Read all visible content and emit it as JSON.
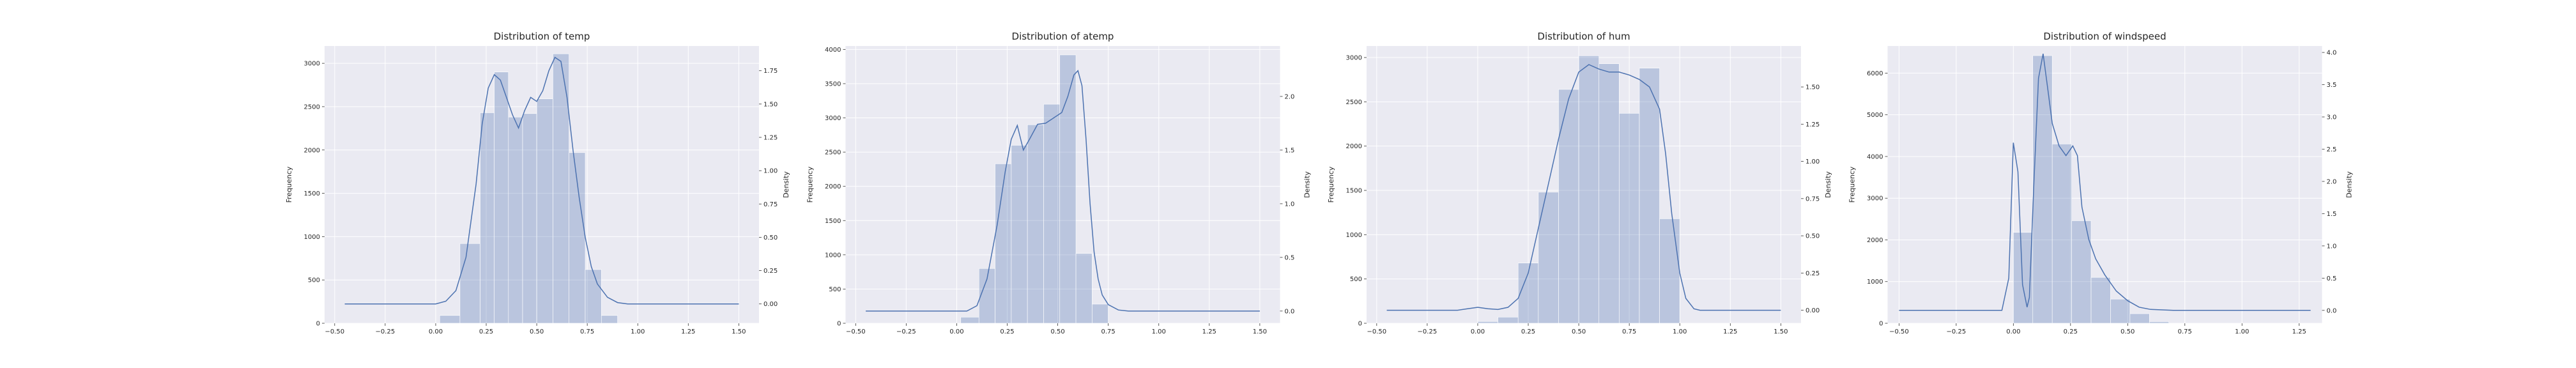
{
  "style": {
    "bg": "#eaeaf2",
    "grid": "#ffffff",
    "bar": "#4c72b0",
    "bar_alpha": 0.3,
    "kde": "#4c72b0"
  },
  "chart_data": [
    {
      "type": "histogram",
      "title": "Distribution of temp",
      "ylabel": "Frequency",
      "y2label": "Density",
      "xlim": [
        -0.55,
        1.6
      ],
      "ylim": [
        0,
        3200
      ],
      "y2lim": [
        -0.1452,
        1.9355
      ],
      "xticks": [
        -0.5,
        -0.25,
        0.0,
        0.25,
        0.5,
        0.75,
        1.0,
        1.25,
        1.5
      ],
      "xtick_labels": [
        "−0.50",
        "−0.25",
        "0.00",
        "0.25",
        "0.50",
        "0.75",
        "1.00",
        "1.25",
        "1.50"
      ],
      "yticks": [
        0,
        500,
        1000,
        1500,
        2000,
        2500,
        3000
      ],
      "ytick_labels": [
        "0",
        "500",
        "1000",
        "1500",
        "2000",
        "2500",
        "3000"
      ],
      "y2ticks": [
        0.0,
        0.25,
        0.5,
        0.75,
        1.0,
        1.25,
        1.5,
        1.75
      ],
      "y2tick_labels": [
        "0.00",
        "0.25",
        "0.50",
        "0.75",
        "1.00",
        "1.25",
        "1.50",
        "1.75"
      ],
      "bins": [
        {
          "x0": 0.02,
          "x1": 0.12,
          "count": 90
        },
        {
          "x0": 0.12,
          "x1": 0.22,
          "count": 920
        },
        {
          "x0": 0.22,
          "x1": 0.29,
          "count": 2430
        },
        {
          "x0": 0.29,
          "x1": 0.36,
          "count": 2900
        },
        {
          "x0": 0.36,
          "x1": 0.43,
          "count": 2380
        },
        {
          "x0": 0.43,
          "x1": 0.5,
          "count": 2420
        },
        {
          "x0": 0.5,
          "x1": 0.58,
          "count": 2590
        },
        {
          "x0": 0.58,
          "x1": 0.66,
          "count": 3110
        },
        {
          "x0": 0.66,
          "x1": 0.74,
          "count": 1970
        },
        {
          "x0": 0.74,
          "x1": 0.82,
          "count": 620
        },
        {
          "x0": 0.82,
          "x1": 0.9,
          "count": 90
        }
      ],
      "kde": [
        [
          -0.45,
          0.0
        ],
        [
          0.0,
          0.0
        ],
        [
          0.05,
          0.02
        ],
        [
          0.1,
          0.1
        ],
        [
          0.15,
          0.35
        ],
        [
          0.2,
          0.9
        ],
        [
          0.23,
          1.35
        ],
        [
          0.26,
          1.62
        ],
        [
          0.29,
          1.72
        ],
        [
          0.32,
          1.68
        ],
        [
          0.35,
          1.55
        ],
        [
          0.38,
          1.42
        ],
        [
          0.41,
          1.32
        ],
        [
          0.44,
          1.45
        ],
        [
          0.47,
          1.55
        ],
        [
          0.5,
          1.52
        ],
        [
          0.53,
          1.6
        ],
        [
          0.56,
          1.75
        ],
        [
          0.59,
          1.85
        ],
        [
          0.62,
          1.82
        ],
        [
          0.65,
          1.55
        ],
        [
          0.68,
          1.15
        ],
        [
          0.71,
          0.8
        ],
        [
          0.74,
          0.5
        ],
        [
          0.77,
          0.28
        ],
        [
          0.8,
          0.15
        ],
        [
          0.85,
          0.05
        ],
        [
          0.9,
          0.01
        ],
        [
          0.95,
          0.0
        ],
        [
          1.5,
          0.0
        ]
      ]
    },
    {
      "type": "histogram",
      "title": "Distribution of atemp",
      "ylabel": "Frequency",
      "y2label": "Density",
      "xlim": [
        -0.55,
        1.6
      ],
      "ylim": [
        0,
        4050
      ],
      "y2lim": [
        -0.114,
        2.47
      ],
      "xticks": [
        -0.5,
        -0.25,
        0.0,
        0.25,
        0.5,
        0.75,
        1.0,
        1.25,
        1.5
      ],
      "xtick_labels": [
        "−0.50",
        "−0.25",
        "0.00",
        "0.25",
        "0.50",
        "0.75",
        "1.00",
        "1.25",
        "1.50"
      ],
      "yticks": [
        0,
        500,
        1000,
        1500,
        2000,
        2500,
        3000,
        3500,
        4000
      ],
      "ytick_labels": [
        "0",
        "500",
        "1000",
        "1500",
        "2000",
        "2500",
        "3000",
        "3500",
        "4000"
      ],
      "y2ticks": [
        0.0,
        0.5,
        1.0,
        1.5,
        2.0
      ],
      "y2tick_labels": [
        "0.0",
        "0.5",
        "1.0",
        "1.5",
        "2.0"
      ],
      "bins": [
        {
          "x0": 0.02,
          "x1": 0.11,
          "count": 90
        },
        {
          "x0": 0.11,
          "x1": 0.19,
          "count": 800
        },
        {
          "x0": 0.19,
          "x1": 0.27,
          "count": 2330
        },
        {
          "x0": 0.27,
          "x1": 0.35,
          "count": 2600
        },
        {
          "x0": 0.35,
          "x1": 0.43,
          "count": 2900
        },
        {
          "x0": 0.43,
          "x1": 0.51,
          "count": 3200
        },
        {
          "x0": 0.51,
          "x1": 0.59,
          "count": 3920
        },
        {
          "x0": 0.59,
          "x1": 0.67,
          "count": 1020
        },
        {
          "x0": 0.67,
          "x1": 0.75,
          "count": 280
        }
      ],
      "kde": [
        [
          -0.45,
          0.0
        ],
        [
          0.05,
          0.0
        ],
        [
          0.1,
          0.05
        ],
        [
          0.15,
          0.3
        ],
        [
          0.2,
          0.8
        ],
        [
          0.24,
          1.3
        ],
        [
          0.27,
          1.6
        ],
        [
          0.3,
          1.73
        ],
        [
          0.33,
          1.5
        ],
        [
          0.36,
          1.6
        ],
        [
          0.4,
          1.74
        ],
        [
          0.44,
          1.75
        ],
        [
          0.48,
          1.8
        ],
        [
          0.52,
          1.85
        ],
        [
          0.55,
          2.0
        ],
        [
          0.58,
          2.2
        ],
        [
          0.6,
          2.24
        ],
        [
          0.62,
          2.1
        ],
        [
          0.64,
          1.6
        ],
        [
          0.66,
          1.0
        ],
        [
          0.68,
          0.55
        ],
        [
          0.7,
          0.3
        ],
        [
          0.72,
          0.15
        ],
        [
          0.75,
          0.06
        ],
        [
          0.8,
          0.01
        ],
        [
          0.85,
          0.0
        ],
        [
          1.5,
          0.0
        ]
      ]
    },
    {
      "type": "histogram",
      "title": "Distribution of hum",
      "ylabel": "Frequency",
      "y2label": "Density",
      "xlim": [
        -0.55,
        1.6
      ],
      "ylim": [
        0,
        3130
      ],
      "y2lim": [
        -0.0875,
        1.775
      ],
      "xticks": [
        -0.5,
        -0.25,
        0.0,
        0.25,
        0.5,
        0.75,
        1.0,
        1.25,
        1.5
      ],
      "xtick_labels": [
        "−0.50",
        "−0.25",
        "0.00",
        "0.25",
        "0.50",
        "0.75",
        "1.00",
        "1.25",
        "1.50"
      ],
      "yticks": [
        0,
        500,
        1000,
        1500,
        2000,
        2500,
        3000
      ],
      "ytick_labels": [
        "0",
        "500",
        "1000",
        "1500",
        "2000",
        "2500",
        "3000"
      ],
      "y2ticks": [
        0.0,
        0.25,
        0.5,
        0.75,
        1.0,
        1.25,
        1.5
      ],
      "y2tick_labels": [
        "0.00",
        "0.25",
        "0.50",
        "0.75",
        "1.00",
        "1.25",
        "1.50"
      ],
      "bins": [
        {
          "x0": 0.0,
          "x1": 0.1,
          "count": 20
        },
        {
          "x0": 0.1,
          "x1": 0.2,
          "count": 70
        },
        {
          "x0": 0.2,
          "x1": 0.3,
          "count": 680
        },
        {
          "x0": 0.3,
          "x1": 0.4,
          "count": 1480
        },
        {
          "x0": 0.4,
          "x1": 0.5,
          "count": 2640
        },
        {
          "x0": 0.5,
          "x1": 0.6,
          "count": 3020
        },
        {
          "x0": 0.6,
          "x1": 0.7,
          "count": 2930
        },
        {
          "x0": 0.7,
          "x1": 0.8,
          "count": 2370
        },
        {
          "x0": 0.8,
          "x1": 0.9,
          "count": 2880
        },
        {
          "x0": 0.9,
          "x1": 1.0,
          "count": 1180
        }
      ],
      "kde": [
        [
          -0.45,
          0.0
        ],
        [
          -0.1,
          0.0
        ],
        [
          -0.05,
          0.01
        ],
        [
          0.0,
          0.02
        ],
        [
          0.05,
          0.01
        ],
        [
          0.1,
          0.005
        ],
        [
          0.15,
          0.02
        ],
        [
          0.2,
          0.08
        ],
        [
          0.25,
          0.25
        ],
        [
          0.3,
          0.55
        ],
        [
          0.35,
          0.85
        ],
        [
          0.4,
          1.15
        ],
        [
          0.45,
          1.42
        ],
        [
          0.5,
          1.6
        ],
        [
          0.55,
          1.65
        ],
        [
          0.6,
          1.62
        ],
        [
          0.65,
          1.6
        ],
        [
          0.7,
          1.6
        ],
        [
          0.75,
          1.58
        ],
        [
          0.8,
          1.55
        ],
        [
          0.85,
          1.5
        ],
        [
          0.9,
          1.35
        ],
        [
          0.93,
          1.05
        ],
        [
          0.96,
          0.65
        ],
        [
          1.0,
          0.25
        ],
        [
          1.03,
          0.08
        ],
        [
          1.07,
          0.01
        ],
        [
          1.1,
          0.0
        ],
        [
          1.5,
          0.0
        ]
      ]
    },
    {
      "type": "histogram",
      "title": "Distribution of windspeed",
      "ylabel": "Frequency",
      "y2label": "Density",
      "xlim": [
        -0.55,
        1.35
      ],
      "ylim": [
        0,
        6650
      ],
      "y2lim": [
        -0.2,
        4.1
      ],
      "xticks": [
        -0.5,
        -0.25,
        0.0,
        0.25,
        0.5,
        0.75,
        1.0,
        1.25
      ],
      "xtick_labels": [
        "−0.50",
        "−0.25",
        "0.00",
        "0.25",
        "0.50",
        "0.75",
        "1.00",
        "1.25"
      ],
      "yticks": [
        0,
        1000,
        2000,
        3000,
        4000,
        5000,
        6000
      ],
      "ytick_labels": [
        "0",
        "1000",
        "2000",
        "3000",
        "4000",
        "5000",
        "6000"
      ],
      "y2ticks": [
        0.0,
        0.5,
        1.0,
        1.5,
        2.0,
        2.5,
        3.0,
        3.5,
        4.0
      ],
      "y2tick_labels": [
        "0.0",
        "0.5",
        "1.0",
        "1.5",
        "2.0",
        "2.5",
        "3.0",
        "3.5",
        "4.0"
      ],
      "bins": [
        {
          "x0": 0.0,
          "x1": 0.085,
          "count": 2180
        },
        {
          "x0": 0.085,
          "x1": 0.17,
          "count": 6420
        },
        {
          "x0": 0.17,
          "x1": 0.255,
          "count": 4300
        },
        {
          "x0": 0.255,
          "x1": 0.34,
          "count": 2460
        },
        {
          "x0": 0.34,
          "x1": 0.425,
          "count": 1100
        },
        {
          "x0": 0.425,
          "x1": 0.51,
          "count": 580
        },
        {
          "x0": 0.51,
          "x1": 0.595,
          "count": 230
        },
        {
          "x0": 0.595,
          "x1": 0.68,
          "count": 40
        }
      ],
      "kde": [
        [
          -0.5,
          0.0
        ],
        [
          -0.05,
          0.0
        ],
        [
          -0.02,
          0.5
        ],
        [
          0.0,
          2.6
        ],
        [
          0.02,
          2.15
        ],
        [
          0.04,
          0.4
        ],
        [
          0.06,
          0.05
        ],
        [
          0.07,
          0.2
        ],
        [
          0.09,
          2.0
        ],
        [
          0.11,
          3.6
        ],
        [
          0.13,
          3.98
        ],
        [
          0.15,
          3.45
        ],
        [
          0.17,
          2.9
        ],
        [
          0.2,
          2.55
        ],
        [
          0.23,
          2.4
        ],
        [
          0.26,
          2.55
        ],
        [
          0.28,
          2.4
        ],
        [
          0.3,
          1.6
        ],
        [
          0.33,
          1.1
        ],
        [
          0.36,
          0.8
        ],
        [
          0.4,
          0.55
        ],
        [
          0.45,
          0.3
        ],
        [
          0.5,
          0.15
        ],
        [
          0.55,
          0.05
        ],
        [
          0.6,
          0.015
        ],
        [
          0.7,
          0.0
        ],
        [
          1.3,
          0.0
        ]
      ]
    }
  ]
}
